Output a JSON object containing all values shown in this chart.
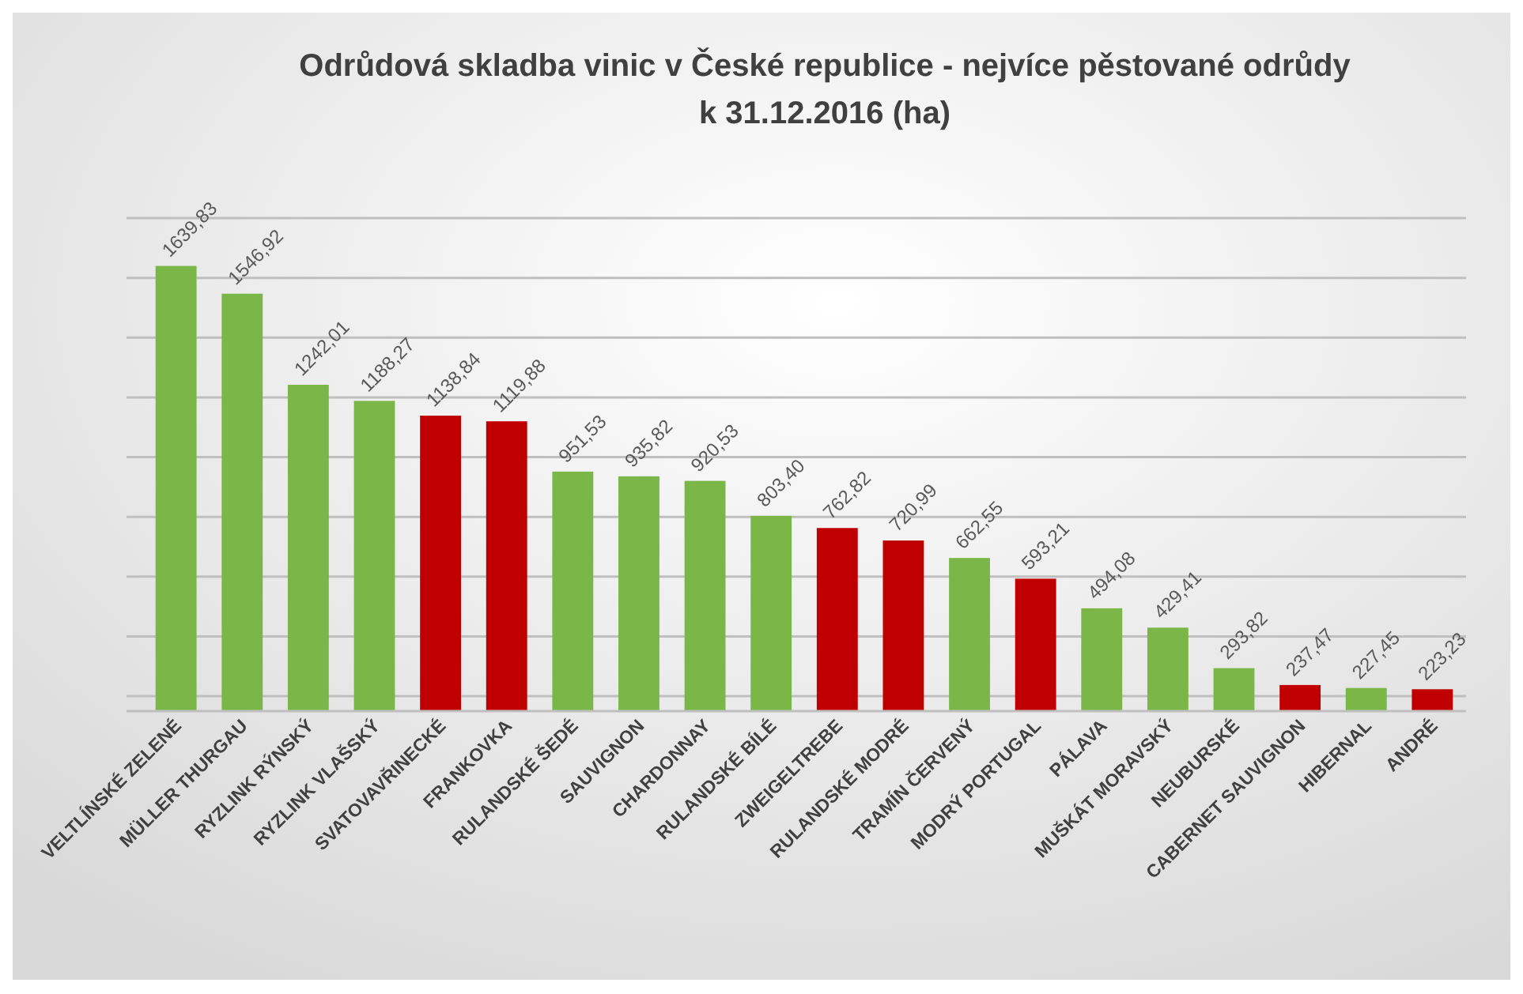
{
  "chart_data": {
    "type": "bar",
    "title": "Odrůdová skladba vinic v České republice - nejvíce pěstované odrůdy\nk 31.12.2016 (ha)",
    "categories": [
      "VELTLÍNSKÉ ZELENÉ",
      "MÜLLER THURGAU",
      "RYZLINK RÝNSKÝ",
      "RYZLINK VLAŠSKÝ",
      "SVATOVAVŘINECKÉ",
      "FRANKOVKA",
      "RULANDSKÉ ŠEDÉ",
      "SAUVIGNON",
      "CHARDONNAY",
      "RULANDSKÉ BÍLÉ",
      "ZWEIGELTREBE",
      "RULANDSKÉ MODRÉ",
      "TRAMÍN ČERVENÝ",
      "MODRÝ PORTUGAL",
      "PÁLAVA",
      "MUŠKÁT MORAVSKÝ",
      "NEUBURSKÉ",
      "CABERNET SAUVIGNON",
      "HIBERNAL",
      "ANDRÉ"
    ],
    "values": [
      1639.83,
      1546.92,
      1242.01,
      1188.27,
      1138.84,
      1119.88,
      951.53,
      935.82,
      920.53,
      803.4,
      762.82,
      720.99,
      662.55,
      593.21,
      494.08,
      429.41,
      293.82,
      237.47,
      227.45,
      223.23
    ],
    "value_labels": [
      "1639,83",
      "1546,92",
      "1242,01",
      "1188,27",
      "1138,84",
      "1119,88",
      "951,53",
      "935,82",
      "920,53",
      "803,40",
      "762,82",
      "720,99",
      "662,55",
      "593,21",
      "494,08",
      "429,41",
      "293,82",
      "237,47",
      "227,45",
      "223,23"
    ],
    "colors": [
      "#7ab648",
      "#7ab648",
      "#7ab648",
      "#7ab648",
      "#c00000",
      "#c00000",
      "#7ab648",
      "#7ab648",
      "#7ab648",
      "#7ab648",
      "#c00000",
      "#c00000",
      "#7ab648",
      "#c00000",
      "#7ab648",
      "#7ab648",
      "#7ab648",
      "#c00000",
      "#7ab648",
      "#c00000"
    ],
    "ylim": [
      150,
      1800
    ],
    "yticks": [
      {
        "value": 200,
        "label": null
      },
      {
        "value": 400,
        "label": null
      },
      {
        "value": 600,
        "label": null
      },
      {
        "value": 800,
        "label": null
      },
      {
        "value": 1000,
        "label": null
      },
      {
        "value": 1200,
        "label": null
      },
      {
        "value": 1400,
        "label": null
      },
      {
        "value": 1600,
        "label": null
      },
      {
        "value": 1800,
        "label": null
      }
    ],
    "grid": "y",
    "tick_labels": "x"
  }
}
